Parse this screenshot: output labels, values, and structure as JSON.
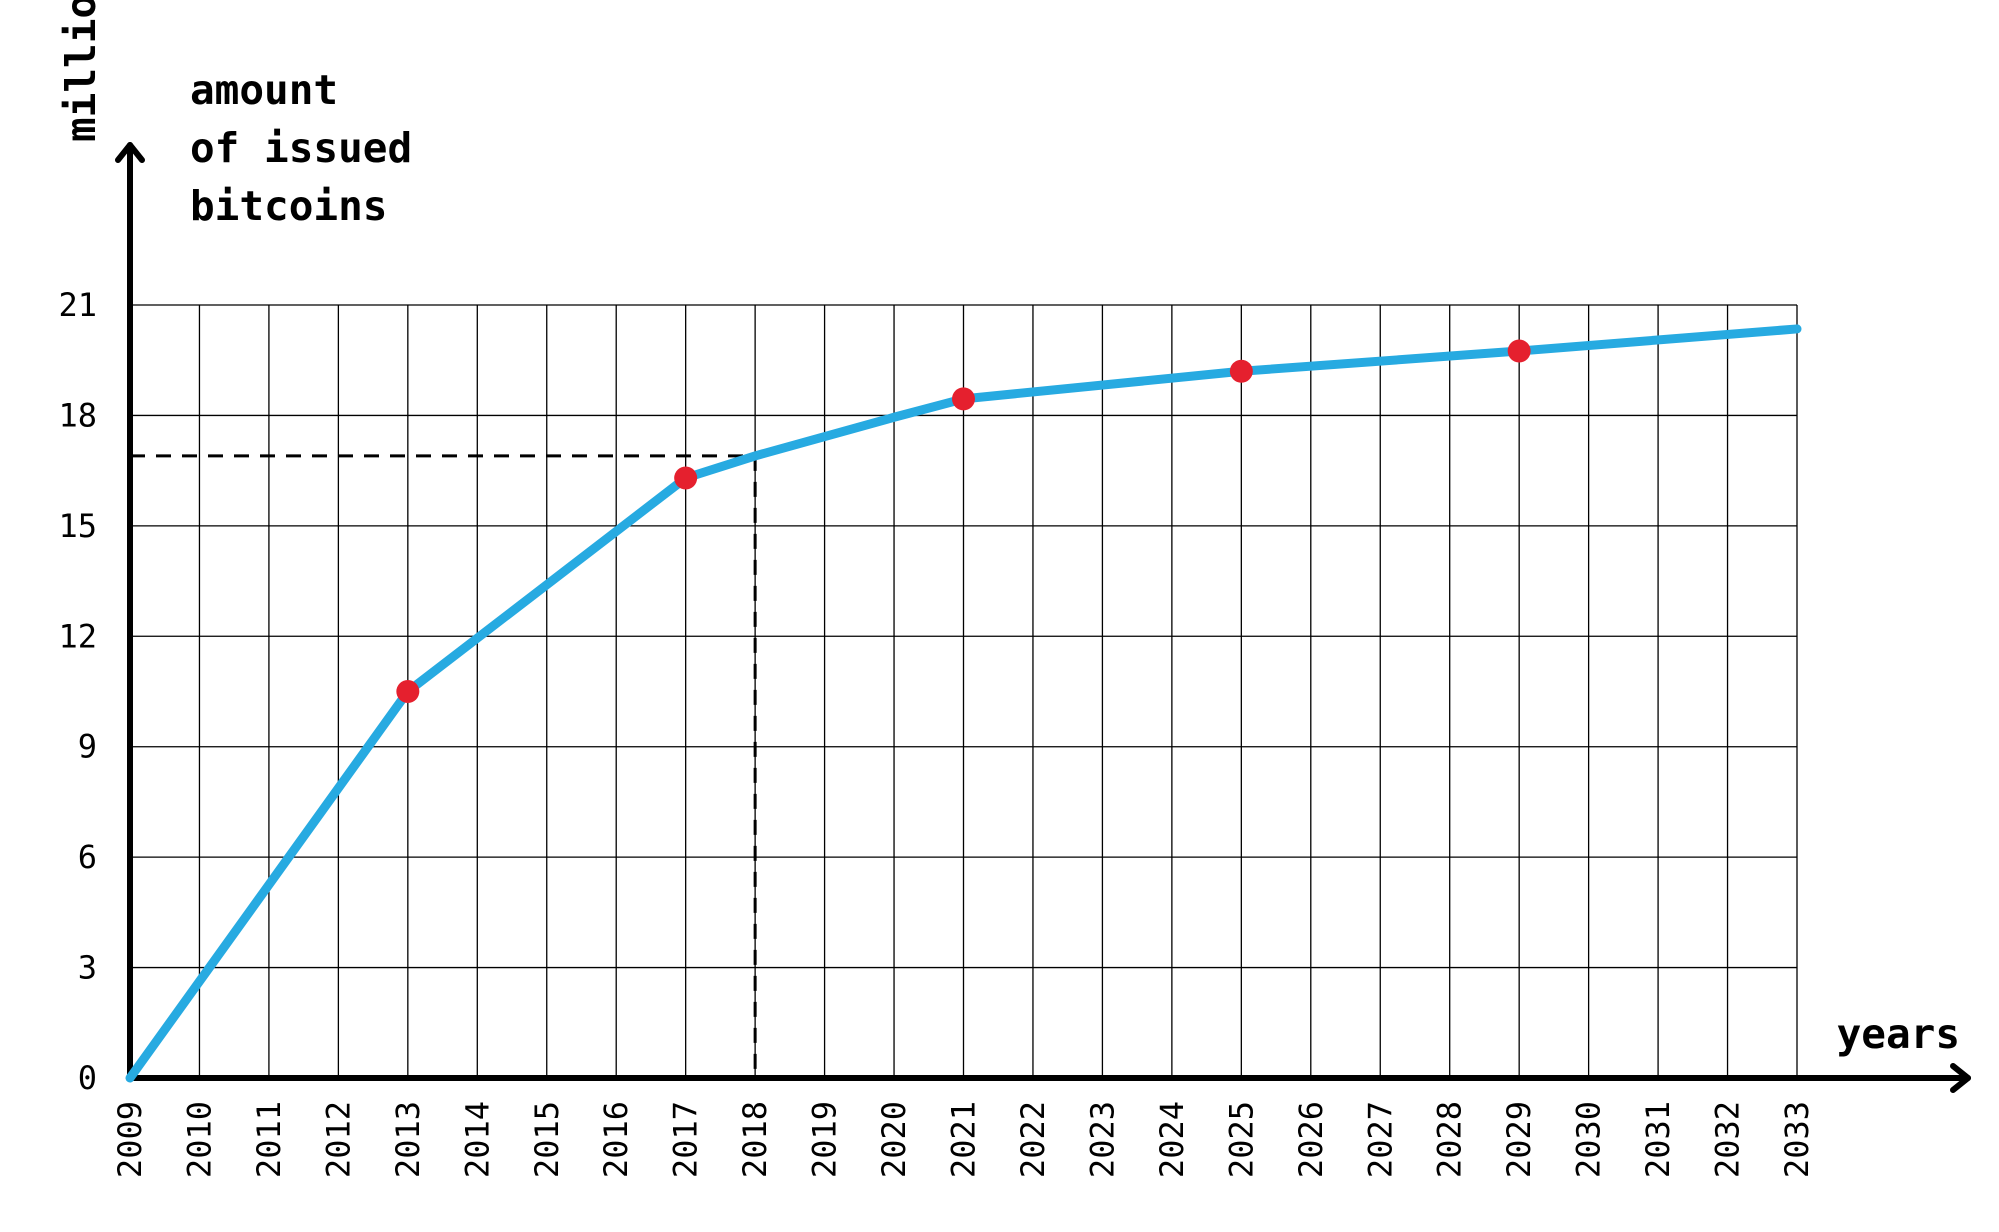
{
  "chart_data": {
    "type": "line",
    "ylabel_unit": "millions",
    "ylabel_lines": [
      "amount",
      "of issued",
      "bitcoins"
    ],
    "xlabel": "years",
    "x_ticks": [
      "2009",
      "2010",
      "2011",
      "2012",
      "2013",
      "2014",
      "2015",
      "2016",
      "2017",
      "2018",
      "2019",
      "2020",
      "2021",
      "2022",
      "2023",
      "2024",
      "2025",
      "2026",
      "2027",
      "2028",
      "2029",
      "2030",
      "2031",
      "2032",
      "2033"
    ],
    "y_ticks": [
      "0",
      "3",
      "6",
      "9",
      "12",
      "15",
      "18",
      "21"
    ],
    "xlim": [
      2009,
      2033
    ],
    "ylim": [
      0,
      21
    ],
    "grid": true,
    "series": [
      {
        "color": "#27aae1",
        "x": [
          2009,
          2013,
          2017,
          2018,
          2020,
          2021,
          2025,
          2029,
          2033
        ],
        "y": [
          0,
          10.5,
          16.3,
          16.9,
          17.95,
          18.45,
          19.2,
          19.75,
          20.35
        ]
      }
    ],
    "highlight_points": {
      "color": "#e5202e",
      "x": [
        2013,
        2017,
        2021,
        2025,
        2029
      ],
      "y": [
        10.5,
        16.3,
        18.45,
        19.2,
        19.75
      ]
    },
    "reference_point": {
      "x": 2018,
      "y": 16.9,
      "style": "dashed"
    }
  }
}
